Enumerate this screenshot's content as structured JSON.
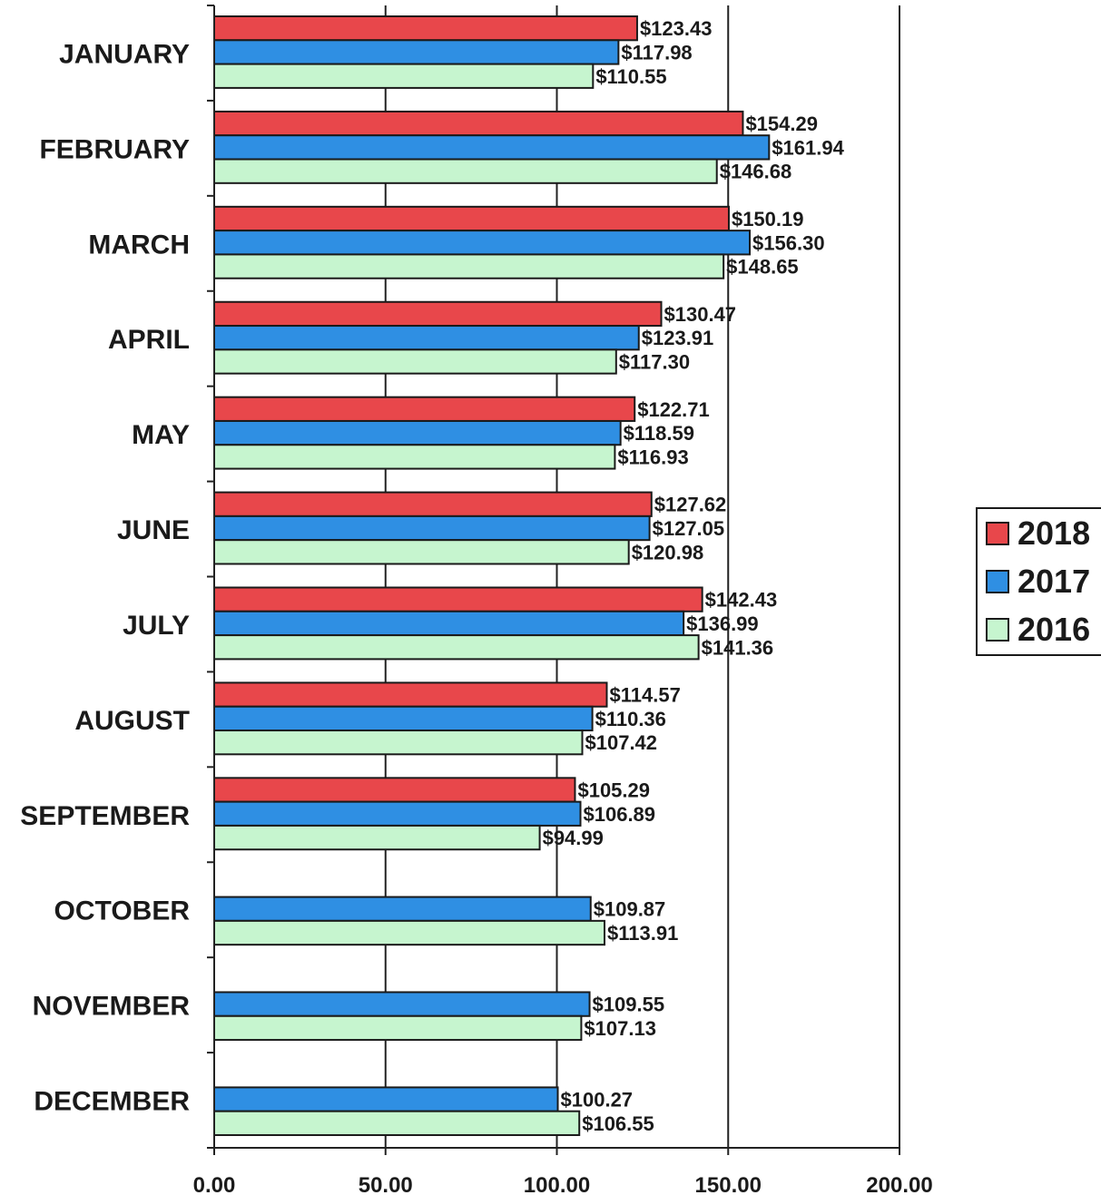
{
  "chart_data": {
    "type": "bar",
    "orientation": "horizontal",
    "categories": [
      "JANUARY",
      "FEBRUARY",
      "MARCH",
      "APRIL",
      "MAY",
      "JUNE",
      "JULY",
      "AUGUST",
      "SEPTEMBER",
      "OCTOBER",
      "NOVEMBER",
      "DECEMBER"
    ],
    "series": [
      {
        "name": "2018",
        "color": "#e8474b",
        "values": [
          123.43,
          154.29,
          150.19,
          130.47,
          122.71,
          127.62,
          142.43,
          114.57,
          105.29,
          null,
          null,
          null
        ],
        "labels": [
          "$123.43",
          "$154.29",
          "$150.19",
          "$130.47",
          "$122.71",
          "$127.62",
          "$142.43",
          "$114.57",
          "$105.29",
          null,
          null,
          null
        ]
      },
      {
        "name": "2017",
        "color": "#2f8fe3",
        "values": [
          117.98,
          161.94,
          156.3,
          123.91,
          118.59,
          127.05,
          136.99,
          110.36,
          106.89,
          109.87,
          109.55,
          100.27
        ],
        "labels": [
          "$117.98",
          "$161.94",
          "$156.30",
          "$123.91",
          "$118.59",
          "$127.05",
          "$136.99",
          "$110.36",
          "$106.89",
          "$109.87",
          "$109.55",
          "$100.27"
        ]
      },
      {
        "name": "2016",
        "color": "#c6f5cf",
        "values": [
          110.55,
          146.68,
          148.65,
          117.3,
          116.93,
          120.98,
          141.36,
          107.42,
          94.99,
          113.91,
          107.13,
          106.55
        ],
        "labels": [
          "$110.55",
          "$146.68",
          "$148.65",
          "$117.30",
          "$116.93",
          "$120.98",
          "$141.36",
          "$107.42",
          "$94.99",
          "$113.91",
          "$107.13",
          "$106.55"
        ]
      }
    ],
    "xlim": [
      0,
      200
    ],
    "xticks": [
      0,
      50,
      100,
      150,
      200
    ],
    "xtick_labels": [
      "0.00",
      "50.00",
      "100.00",
      "150.00",
      "200.00"
    ],
    "title": "",
    "xlabel": "",
    "ylabel": "",
    "grid": "vertical",
    "legend": {
      "position": "right",
      "order": [
        "2018",
        "2017",
        "2016"
      ]
    }
  }
}
